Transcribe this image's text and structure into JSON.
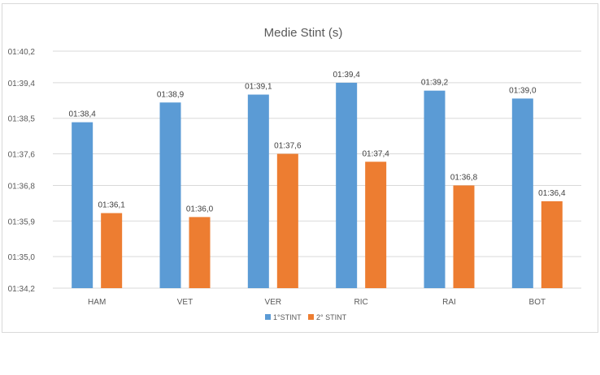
{
  "chart_data": {
    "type": "bar",
    "title": "Medie Stint (s)",
    "categories": [
      "HAM",
      "VET",
      "VER",
      "RIC",
      "RAI",
      "BOT"
    ],
    "series": [
      {
        "name": "1°STINT",
        "color": "#5b9bd5",
        "values": [
          98.4,
          98.9,
          99.1,
          99.4,
          99.2,
          99.0
        ],
        "labels": [
          "01:38,4",
          "01:38,9",
          "01:39,1",
          "01:39,4",
          "01:39,2",
          "01:39,0"
        ]
      },
      {
        "name": "2° STINT",
        "color": "#ed7d31",
        "values": [
          96.1,
          96.0,
          97.6,
          97.4,
          96.8,
          96.4
        ],
        "labels": [
          "01:36,1",
          "01:36,0",
          "01:37,6",
          "01:37,4",
          "01:36,8",
          "01:36,4"
        ]
      }
    ],
    "y_ticks": [
      {
        "value": 94.2,
        "label": "01:34,2"
      },
      {
        "value": 95.0,
        "label": "01:35,0"
      },
      {
        "value": 95.9,
        "label": "01:35,9"
      },
      {
        "value": 96.8,
        "label": "01:36,8"
      },
      {
        "value": 97.6,
        "label": "01:37,6"
      },
      {
        "value": 98.5,
        "label": "01:38,5"
      },
      {
        "value": 99.4,
        "label": "01:39,4"
      },
      {
        "value": 100.2,
        "label": "01:40,2"
      }
    ],
    "ylim": [
      94.2,
      100.2
    ],
    "grid": true,
    "legend": "bottom"
  }
}
